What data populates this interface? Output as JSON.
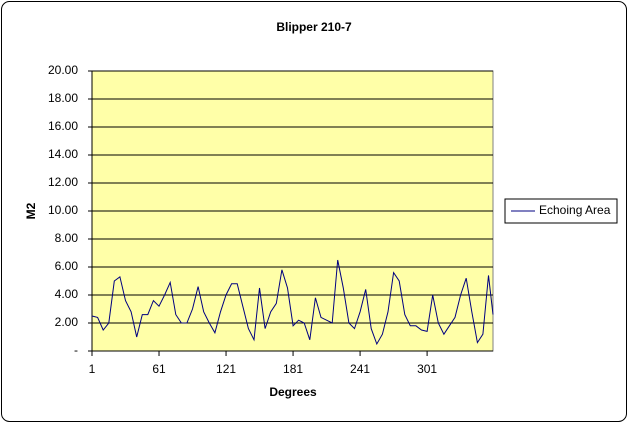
{
  "chart_data": {
    "type": "line",
    "title": "Blipper 210-7",
    "x_label": "Degrees",
    "y_label": "M2",
    "x": [
      1,
      6,
      11,
      16,
      21,
      26,
      31,
      36,
      41,
      46,
      51,
      56,
      61,
      66,
      71,
      76,
      81,
      86,
      91,
      96,
      101,
      106,
      111,
      116,
      121,
      126,
      131,
      136,
      141,
      146,
      151,
      156,
      161,
      166,
      171,
      176,
      181,
      186,
      191,
      196,
      201,
      206,
      211,
      216,
      221,
      226,
      231,
      236,
      241,
      246,
      251,
      256,
      261,
      266,
      271,
      276,
      281,
      286,
      291,
      296,
      301,
      306,
      311,
      316,
      321,
      326,
      331,
      336,
      341,
      346,
      351,
      356,
      360
    ],
    "series": [
      {
        "name": "Echoing Area",
        "color": "#000080",
        "values": [
          2.5,
          2.4,
          1.5,
          2.0,
          5.0,
          5.3,
          3.6,
          2.8,
          1.0,
          2.6,
          2.6,
          3.6,
          3.2,
          4.0,
          4.9,
          2.6,
          2.0,
          2.0,
          3.0,
          4.6,
          2.8,
          2.0,
          1.3,
          2.8,
          4.0,
          4.8,
          4.8,
          3.2,
          1.6,
          0.8,
          4.5,
          1.6,
          2.8,
          3.4,
          5.8,
          4.5,
          1.8,
          2.2,
          2.0,
          0.8,
          3.8,
          2.4,
          2.2,
          2.0,
          6.5,
          4.5,
          2.0,
          1.6,
          2.8,
          4.4,
          1.6,
          0.5,
          1.2,
          2.8,
          5.6,
          5.0,
          2.6,
          1.8,
          1.8,
          1.5,
          1.4,
          4.0,
          2.0,
          1.2,
          1.8,
          2.4,
          4.0,
          5.2,
          2.8,
          0.6,
          1.2,
          5.4,
          2.6
        ]
      }
    ],
    "xlim": [
      1,
      360
    ],
    "xticks": [
      1,
      61,
      121,
      181,
      241,
      301
    ],
    "ylim": [
      0,
      20
    ],
    "yticks": [
      {
        "value": 0,
        "label": "-"
      },
      {
        "value": 2,
        "label": "2.00"
      },
      {
        "value": 4,
        "label": "4.00"
      },
      {
        "value": 6,
        "label": "6.00"
      },
      {
        "value": 8,
        "label": "8.00"
      },
      {
        "value": 10,
        "label": "10.00"
      },
      {
        "value": 12,
        "label": "12.00"
      },
      {
        "value": 14,
        "label": "14.00"
      },
      {
        "value": 16,
        "label": "16.00"
      },
      {
        "value": 18,
        "label": "18.00"
      },
      {
        "value": 20,
        "label": "20.00"
      }
    ],
    "grid": true,
    "legend": "right",
    "plot_background": "#ffffa8"
  }
}
